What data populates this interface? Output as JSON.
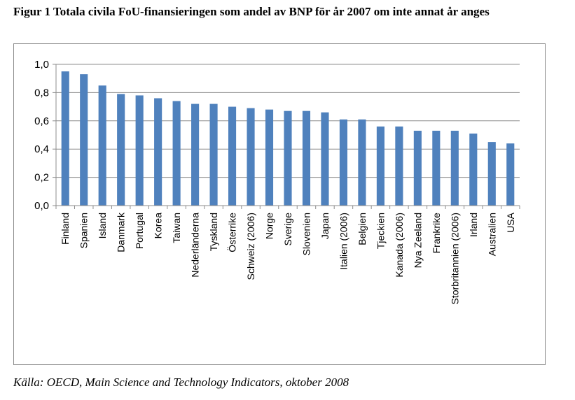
{
  "figure": {
    "caption": "Figur 1 Totala civila FoU-finansieringen som andel av BNP för år 2007 om inte annat år anges",
    "source": "Källa: OECD, Main Science and Technology Indicators, oktober 2008"
  },
  "chart_data": {
    "type": "bar",
    "title": "",
    "xlabel": "",
    "ylabel": "",
    "ylim": [
      0,
      1.0
    ],
    "yticks": [
      "0,0",
      "0,2",
      "0,4",
      "0,6",
      "0,8",
      "1,0"
    ],
    "ytick_values": [
      0,
      0.2,
      0.4,
      0.6,
      0.8,
      1.0
    ],
    "grid": true,
    "legend": "none",
    "bar_color": "#4f81bd",
    "categories": [
      "Finland",
      "Spanien",
      "Island",
      "Danmark",
      "Portugal",
      "Korea",
      "Taiwan",
      "Nederländerna",
      "Tyskland",
      "Österrike",
      "Schweiz (2006)",
      "Norge",
      "Sverige",
      "Slovenien",
      "Japan",
      "Italien (2006)",
      "Belgien",
      "Tjeckien",
      "Kanada (2006)",
      "Nya Zeeland",
      "Frankrike",
      "Storbritannien (2006)",
      "Irland",
      "Australien",
      "USA"
    ],
    "values": [
      0.95,
      0.93,
      0.85,
      0.79,
      0.78,
      0.76,
      0.74,
      0.72,
      0.72,
      0.7,
      0.69,
      0.68,
      0.67,
      0.67,
      0.66,
      0.61,
      0.61,
      0.56,
      0.56,
      0.53,
      0.53,
      0.53,
      0.51,
      0.45,
      0.44
    ]
  }
}
